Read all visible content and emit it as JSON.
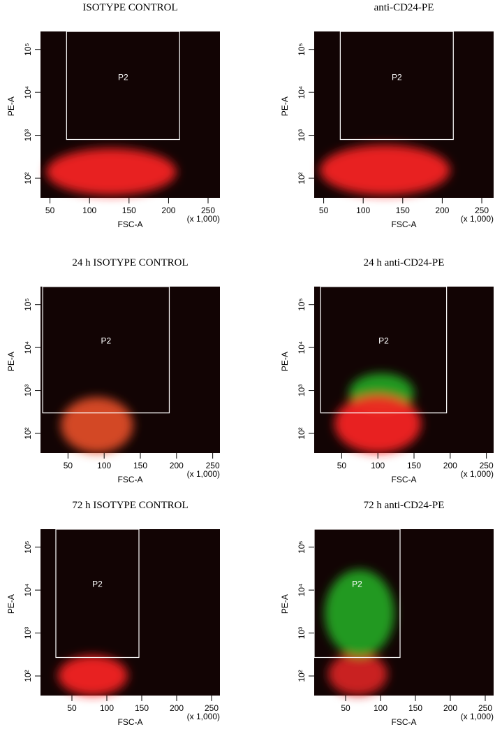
{
  "chart_data": [
    {
      "type": "scatter",
      "title": "ISOTYPE CONTROL",
      "xlabel": "FSC-A",
      "ylabel": "PE-A",
      "x_unit_label": "(x 1,000)",
      "xlim": [
        38,
        265
      ],
      "xticks": [
        50,
        100,
        150,
        200,
        250
      ],
      "yscale": "log",
      "ylim": [
        35,
        262144
      ],
      "yticks": [
        {
          "value": 100,
          "label": "10²"
        },
        {
          "value": 1000,
          "label": "10³"
        },
        {
          "value": 10000,
          "label": "10⁴"
        },
        {
          "value": 100000,
          "label": "10⁵"
        }
      ],
      "gate": {
        "label": "P2",
        "x": [
          71,
          214
        ],
        "y": [
          800,
          262144
        ],
        "color": "#ffffff"
      },
      "clouds": [
        {
          "color": "#ff2222",
          "x": [
            45,
            210
          ],
          "y": [
            40,
            500
          ]
        }
      ]
    },
    {
      "type": "scatter",
      "title": "anti-CD24-PE",
      "xlabel": "FSC-A",
      "ylabel": "PE-A",
      "x_unit_label": "(x 1,000)",
      "xlim": [
        38,
        265
      ],
      "xticks": [
        50,
        100,
        150,
        200,
        250
      ],
      "yscale": "log",
      "ylim": [
        35,
        262144
      ],
      "yticks": [
        {
          "value": 100,
          "label": "10²"
        },
        {
          "value": 1000,
          "label": "10³"
        },
        {
          "value": 10000,
          "label": "10⁴"
        },
        {
          "value": 100000,
          "label": "10⁵"
        }
      ],
      "gate": {
        "label": "P2",
        "x": [
          71,
          214
        ],
        "y": [
          800,
          262144
        ],
        "color": "#ffffff"
      },
      "clouds": [
        {
          "color": "#ff2222",
          "x": [
            45,
            210
          ],
          "y": [
            40,
            600
          ]
        }
      ]
    },
    {
      "type": "scatter",
      "title": "24 h  ISOTYPE CONTROL",
      "xlabel": "FSC-A",
      "ylabel": "PE-A",
      "x_unit_label": "(x 1,000)",
      "xlim": [
        12,
        260
      ],
      "xticks": [
        50,
        100,
        150,
        200,
        250
      ],
      "yscale": "log",
      "ylim": [
        35,
        262144
      ],
      "yticks": [
        {
          "value": 100,
          "label": "10²"
        },
        {
          "value": 1000,
          "label": "10³"
        },
        {
          "value": 10000,
          "label": "10⁴"
        },
        {
          "value": 100000,
          "label": "10⁵"
        }
      ],
      "gate": {
        "label": "P2",
        "x": [
          15,
          190
        ],
        "y": [
          300,
          262144
        ],
        "color": "#ffffff"
      },
      "clouds": [
        {
          "color": "#e85028",
          "x": [
            40,
            140
          ],
          "y": [
            35,
            700
          ]
        }
      ]
    },
    {
      "type": "scatter",
      "title": "24 h anti-CD24-PE",
      "xlabel": "FSC-A",
      "ylabel": "PE-A",
      "x_unit_label": "(x 1,000)",
      "xlim": [
        12,
        260
      ],
      "xticks": [
        50,
        100,
        150,
        200,
        250
      ],
      "yscale": "log",
      "ylim": [
        35,
        262144
      ],
      "yticks": [
        {
          "value": 100,
          "label": "10²"
        },
        {
          "value": 1000,
          "label": "10³"
        },
        {
          "value": 10000,
          "label": "10⁴"
        },
        {
          "value": 100000,
          "label": "10⁵"
        }
      ],
      "gate": {
        "label": "P2",
        "x": [
          21,
          195
        ],
        "y": [
          300,
          262144
        ],
        "color": "#ffffff"
      },
      "clouds": [
        {
          "color": "#22aa22",
          "x": [
            60,
            150
          ],
          "y": [
            300,
            2500
          ]
        },
        {
          "color": "#ff2222",
          "x": [
            40,
            160
          ],
          "y": [
            35,
            800
          ]
        }
      ]
    },
    {
      "type": "scatter",
      "title": "72 h  ISOTYPE CONTROL",
      "xlabel": "FSC-A",
      "ylabel": "PE-A",
      "x_unit_label": "(x 1,000)",
      "xlim": [
        5,
        262
      ],
      "xticks": [
        50,
        100,
        150,
        200,
        250
      ],
      "yscale": "log",
      "ylim": [
        35,
        262144
      ],
      "yticks": [
        {
          "value": 100,
          "label": "10²"
        },
        {
          "value": 1000,
          "label": "10³"
        },
        {
          "value": 10000,
          "label": "10⁴"
        },
        {
          "value": 100000,
          "label": "10⁵"
        }
      ],
      "gate": {
        "label": "P2",
        "x": [
          27,
          146
        ],
        "y": [
          270,
          262144
        ],
        "color": "#ffffff"
      },
      "clouds": [
        {
          "color": "#ff2222",
          "x": [
            30,
            130
          ],
          "y": [
            35,
            300
          ]
        }
      ]
    },
    {
      "type": "scatter",
      "title": "72 h anti-CD24-PE",
      "xlabel": "FSC-A",
      "ylabel": "PE-A",
      "x_unit_label": "(x 1,000)",
      "xlim": [
        5,
        262
      ],
      "xticks": [
        50,
        100,
        150,
        200,
        250
      ],
      "yscale": "log",
      "ylim": [
        35,
        262144
      ],
      "yticks": [
        {
          "value": 100,
          "label": "10²"
        },
        {
          "value": 1000,
          "label": "10³"
        },
        {
          "value": 10000,
          "label": "10⁴"
        },
        {
          "value": 100000,
          "label": "10⁵"
        }
      ],
      "gate": {
        "label": "P2",
        "x": [
          5,
          128
        ],
        "y": [
          270,
          262144
        ],
        "color": "#ffffff"
      },
      "clouds": [
        {
          "color": "#dd2222",
          "x": [
            25,
            110
          ],
          "y": [
            35,
            350
          ]
        },
        {
          "color": "#22aa22",
          "x": [
            20,
            120
          ],
          "y": [
            280,
            30000
          ]
        }
      ]
    }
  ]
}
